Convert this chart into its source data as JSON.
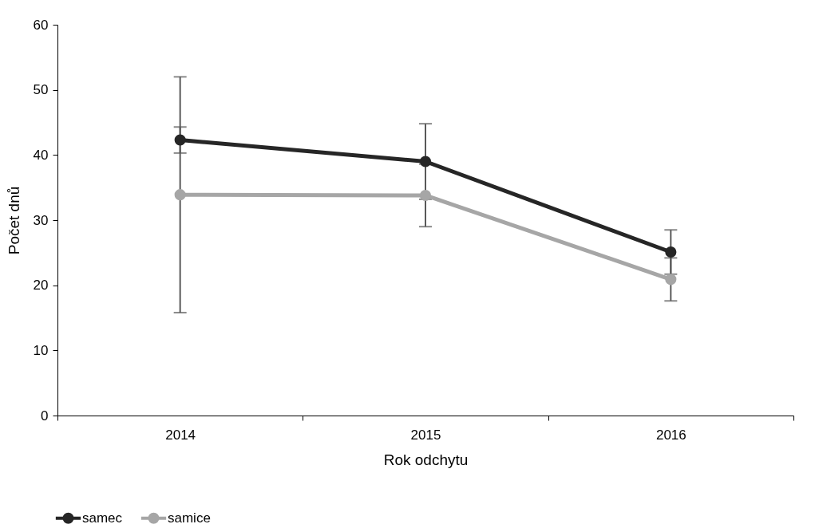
{
  "chart_data": {
    "type": "line",
    "xlabel": "Rok odchytu",
    "ylabel": "Počet dnů",
    "categories": [
      "2014",
      "2015",
      "2016"
    ],
    "series": [
      {
        "name": "samec",
        "color": "#262626",
        "values": [
          42.3,
          39.0,
          25.1
        ],
        "errors": [
          2.0,
          5.8,
          3.4
        ]
      },
      {
        "name": "samice",
        "color": "#a6a6a6",
        "values": [
          33.9,
          33.8,
          20.9
        ],
        "errors": [
          18.1,
          4.8,
          3.3
        ]
      }
    ],
    "ylim": [
      0,
      60
    ],
    "yticks": [
      0,
      10,
      20,
      30,
      40,
      50,
      60
    ],
    "grid": false,
    "legend": "bottom",
    "marker": "circle",
    "line_style": "solid"
  }
}
